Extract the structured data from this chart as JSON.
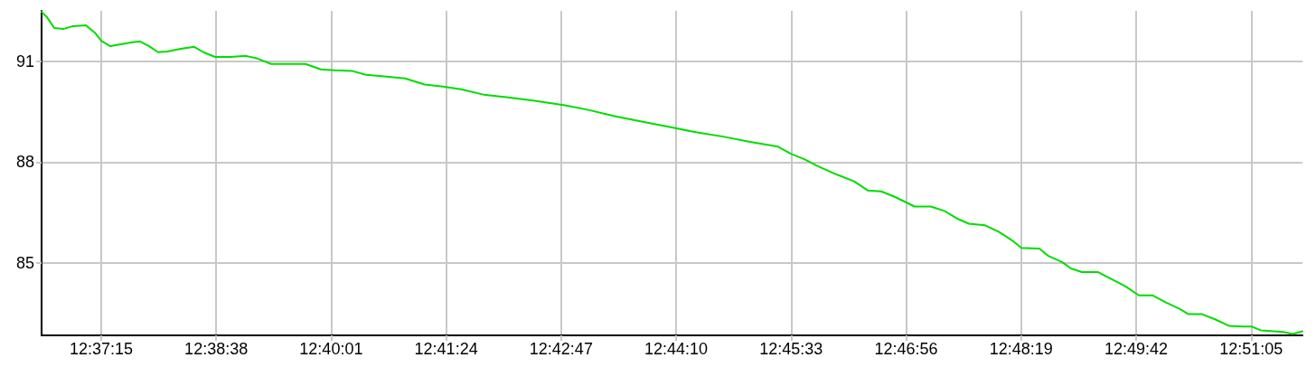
{
  "chart_data": {
    "type": "line",
    "xlim": [
      12.60889,
      12.86167
    ],
    "ylim": [
      82.85,
      92.5
    ],
    "xticks": [
      {
        "value": 12.620833,
        "label": "12:37:15"
      },
      {
        "value": 12.643889,
        "label": "12:38:38"
      },
      {
        "value": 12.666944,
        "label": "12:40:01"
      },
      {
        "value": 12.69,
        "label": "12:41:24"
      },
      {
        "value": 12.713056,
        "label": "12:42:47"
      },
      {
        "value": 12.736111,
        "label": "12:44:10"
      },
      {
        "value": 12.759167,
        "label": "12:45:33"
      },
      {
        "value": 12.782222,
        "label": "12:46:56"
      },
      {
        "value": 12.805278,
        "label": "12:48:19"
      },
      {
        "value": 12.828333,
        "label": "12:49:42"
      },
      {
        "value": 12.851389,
        "label": "12:51:05"
      }
    ],
    "yticks": [
      85,
      88,
      91
    ],
    "grid": true,
    "marker": "none",
    "line_style": "solid",
    "series": [
      {
        "color": "#00dd00",
        "x": [
          12.60889,
          12.60998,
          12.61143,
          12.61324,
          12.61505,
          12.61777,
          12.61958,
          12.62085,
          12.62266,
          12.62502,
          12.62683,
          12.62864,
          12.63045,
          12.63226,
          12.63408,
          12.63679,
          12.63951,
          12.64132,
          12.64368,
          12.64676,
          12.64984,
          12.6522,
          12.65491,
          12.65818,
          12.6618,
          12.66488,
          12.6676,
          12.67122,
          12.67394,
          12.67757,
          12.68173,
          12.68572,
          12.68934,
          12.69297,
          12.6975,
          12.70203,
          12.70746,
          12.71381,
          12.71834,
          12.72377,
          12.72921,
          12.73464,
          12.74008,
          12.74552,
          12.75095,
          12.75639,
          12.75911,
          12.76182,
          12.76454,
          12.76817,
          12.77179,
          12.77451,
          12.77723,
          12.77994,
          12.78393,
          12.78719,
          12.78991,
          12.79263,
          12.7948,
          12.79806,
          12.80078,
          12.8035,
          12.80531,
          12.80894,
          12.81075,
          12.81347,
          12.81528,
          12.81745,
          12.82072,
          12.82343,
          12.82615,
          12.82887,
          12.83159,
          12.83431,
          12.83702,
          12.83884,
          12.84155,
          12.84427,
          12.84699,
          12.84971,
          12.85152,
          12.85333,
          12.85786,
          12.85967,
          12.86167
        ],
        "values": [
          92.47,
          92.31,
          91.99,
          91.96,
          92.04,
          92.07,
          91.85,
          91.61,
          91.45,
          91.51,
          91.56,
          91.59,
          91.45,
          91.27,
          91.29,
          91.37,
          91.43,
          91.27,
          91.13,
          91.13,
          91.16,
          91.08,
          90.92,
          90.92,
          90.92,
          90.76,
          90.73,
          90.71,
          90.6,
          90.55,
          90.49,
          90.31,
          90.25,
          90.17,
          90.01,
          89.93,
          89.83,
          89.69,
          89.56,
          89.37,
          89.21,
          89.05,
          88.89,
          88.76,
          88.6,
          88.47,
          88.25,
          88.09,
          87.88,
          87.64,
          87.43,
          87.16,
          87.13,
          86.97,
          86.68,
          86.68,
          86.55,
          86.31,
          86.17,
          86.12,
          85.93,
          85.67,
          85.45,
          85.43,
          85.21,
          85.03,
          84.84,
          84.73,
          84.73,
          84.52,
          84.31,
          84.04,
          84.04,
          83.83,
          83.64,
          83.48,
          83.48,
          83.32,
          83.13,
          83.11,
          83.11,
          83.0,
          82.95,
          82.89,
          82.97
        ]
      }
    ]
  }
}
